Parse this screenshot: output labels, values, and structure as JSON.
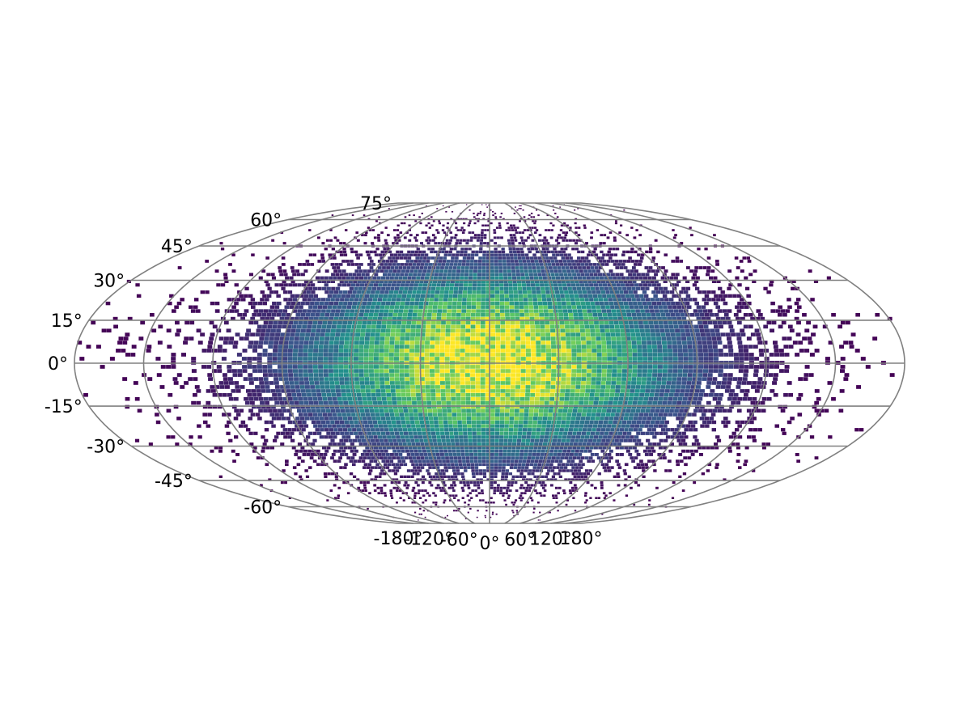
{
  "chart_data": {
    "type": "heatmap",
    "projection": "Wagner-like equal-area (sinusoidal-style)",
    "title": "",
    "xlabel": "",
    "ylabel": "",
    "grid": true,
    "xlim": [
      -180,
      180
    ],
    "ylim": [
      -75,
      75
    ],
    "longitude_ticks": [
      {
        "value": -180,
        "label": "-180°"
      },
      {
        "value": -120,
        "label": "-120°"
      },
      {
        "value": -60,
        "label": "-60°"
      },
      {
        "value": 0,
        "label": "0°"
      },
      {
        "value": 60,
        "label": "60°"
      },
      {
        "value": 120,
        "label": "120°"
      },
      {
        "value": 180,
        "label": "180°"
      }
    ],
    "latitude_ticks": [
      {
        "value": 75,
        "label": "75°"
      },
      {
        "value": 60,
        "label": "60°"
      },
      {
        "value": 45,
        "label": "45°"
      },
      {
        "value": 30,
        "label": "30°"
      },
      {
        "value": 15,
        "label": "15°"
      },
      {
        "value": 0,
        "label": "0°"
      },
      {
        "value": -15,
        "label": "-15°"
      },
      {
        "value": -30,
        "label": "-30°"
      },
      {
        "value": -45,
        "label": "-45°"
      },
      {
        "value": -60,
        "label": "-60°"
      }
    ],
    "colormap": {
      "name": "viridis",
      "stops": [
        "#440154",
        "#3b528b",
        "#21918c",
        "#5ec962",
        "#fde725"
      ]
    },
    "distribution": {
      "kind": "2d gaussian density of points",
      "center_lon": 0,
      "center_lat": 0,
      "sigma_lon": 60,
      "sigma_lat": 25,
      "peak_density": 1.0
    },
    "grid_color": "#808080"
  }
}
